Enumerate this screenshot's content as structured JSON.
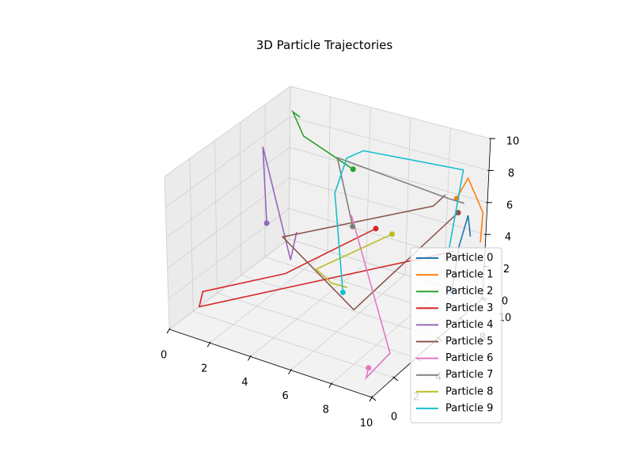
{
  "chart_data": {
    "type": "line3d",
    "title": "3D Particle Trajectories",
    "xlabel": "",
    "ylabel": "",
    "zlabel": "",
    "xlim": [
      0,
      10
    ],
    "ylim": [
      0,
      10
    ],
    "zlim": [
      0,
      10
    ],
    "x_ticks": [
      "0",
      "2",
      "4",
      "6",
      "8",
      "10"
    ],
    "y_ticks": [
      "0",
      "2",
      "4",
      "6",
      "8",
      "10"
    ],
    "z_ticks": [
      "0",
      "2",
      "4",
      "6",
      "8",
      "10"
    ],
    "grid": true,
    "legend_position": "lower-right",
    "start_markers": true,
    "series": [
      {
        "name": "Particle 0",
        "color": "#1f77b4",
        "points": [
          [
            9.5,
            8.0,
            1.5
          ],
          [
            9.5,
            8.5,
            4.0
          ],
          [
            9.5,
            9.2,
            5.5
          ],
          [
            9.5,
            9.5,
            4.0
          ]
        ]
      },
      {
        "name": "Particle 1",
        "color": "#ff7f0e",
        "points": [
          [
            9.0,
            9.0,
            6.5
          ],
          [
            9.2,
            9.6,
            7.5
          ],
          [
            9.8,
            10.0,
            5.3
          ],
          [
            9.8,
            9.9,
            3.5
          ]
        ]
      },
      {
        "name": "Particle 2",
        "color": "#2ca02c",
        "points": [
          [
            4.5,
            7.8,
            7.5
          ],
          [
            1.6,
            8.5,
            8.2
          ],
          [
            1.0,
            8.6,
            9.5
          ],
          [
            1.3,
            8.7,
            9.2
          ]
        ]
      },
      {
        "name": "Particle 3",
        "color": "#d62728",
        "points": [
          [
            7.0,
            5.5,
            6.0
          ],
          [
            4.0,
            3.0,
            3.5
          ],
          [
            0.5,
            2.0,
            1.5
          ],
          [
            0.0,
            2.5,
            0.0
          ],
          [
            9.0,
            9.0,
            3.2
          ]
        ]
      },
      {
        "name": "Particle 4",
        "color": "#9467bd",
        "points": [
          [
            1.0,
            6.5,
            3.5
          ],
          [
            0.5,
            7.0,
            8.0
          ],
          [
            2.5,
            6.0,
            2.0
          ],
          [
            2.5,
            6.5,
            3.5
          ]
        ]
      },
      {
        "name": "Particle 5",
        "color": "#8c564b",
        "points": [
          [
            9.0,
            9.2,
            5.5
          ],
          [
            6.0,
            5.5,
            0.5
          ],
          [
            1.5,
            7.0,
            2.5
          ],
          [
            9.5,
            6.0,
            8.0
          ],
          [
            9.8,
            6.5,
            8.5
          ]
        ]
      },
      {
        "name": "Particle 6",
        "color": "#e377c2",
        "points": [
          [
            9.0,
            1.5,
            0.5
          ],
          [
            9.0,
            1.3,
            0.0
          ],
          [
            9.5,
            2.5,
            1.0
          ],
          [
            5.5,
            6.0,
            6.0
          ]
        ]
      },
      {
        "name": "Particle 7",
        "color": "#7f7f7f",
        "points": [
          [
            5.0,
            7.0,
            4.5
          ],
          [
            3.0,
            9.0,
            7.0
          ],
          [
            9.0,
            8.2,
            7.0
          ],
          [
            9.5,
            8.8,
            6.5
          ]
        ]
      },
      {
        "name": "Particle 8",
        "color": "#bcbd22",
        "points": [
          [
            6.8,
            7.3,
            4.5
          ],
          [
            3.5,
            6.5,
            1.5
          ],
          [
            4.0,
            7.0,
            0.5
          ],
          [
            6.5,
            4.0,
            3.0
          ]
        ]
      },
      {
        "name": "Particle 9",
        "color": "#17becf",
        "points": [
          [
            6.0,
            4.5,
            2.2
          ],
          [
            3.5,
            8.0,
            5.5
          ],
          [
            3.0,
            9.8,
            6.5
          ],
          [
            4.0,
            9.5,
            7.5
          ],
          [
            9.0,
            9.5,
            8.0
          ],
          [
            9.5,
            7.5,
            4.0
          ]
        ]
      }
    ]
  }
}
